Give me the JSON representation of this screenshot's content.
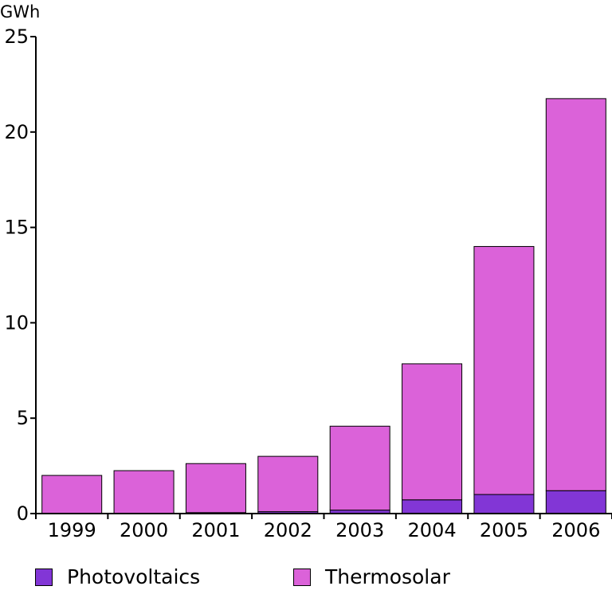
{
  "chart_data": {
    "type": "bar",
    "stacked": true,
    "ylabel": "GWh",
    "ylim": [
      0,
      25
    ],
    "yticks": [
      0,
      5,
      10,
      15,
      20,
      25
    ],
    "categories": [
      "1999",
      "2000",
      "2001",
      "2002",
      "2003",
      "2004",
      "2005",
      "2006"
    ],
    "series": [
      {
        "name": "Photovoltaics",
        "color": "#8236d6",
        "values": [
          0.0,
          0.0,
          0.05,
          0.1,
          0.18,
          0.72,
          1.0,
          1.2
        ]
      },
      {
        "name": "Thermosolar",
        "color": "#db62d9",
        "values": [
          2.0,
          2.25,
          2.57,
          2.9,
          4.4,
          7.13,
          13.0,
          20.55
        ]
      }
    ],
    "grid": false,
    "legend": "bottom"
  }
}
